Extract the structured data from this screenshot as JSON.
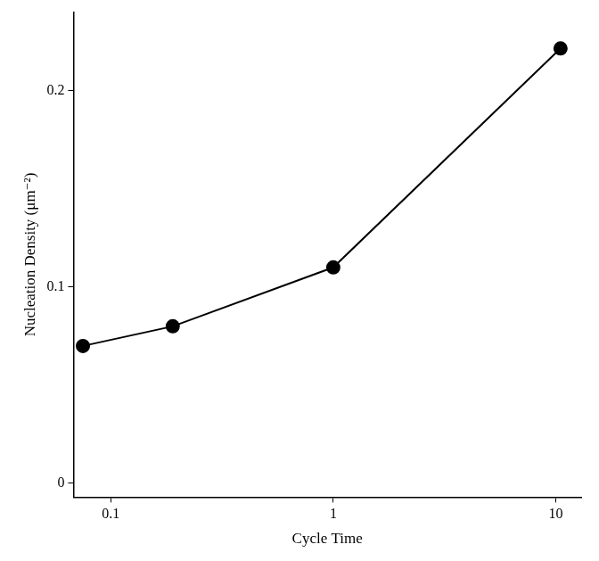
{
  "chart_data": {
    "type": "line",
    "x_label": "Cycle Time",
    "y_label": "Nucleation Density (μm⁻²)",
    "x": [
      0.075,
      0.19,
      1.0,
      10.5
    ],
    "values": [
      0.07,
      0.08,
      0.11,
      0.2215
    ],
    "color": "#000000",
    "marker": "circle",
    "log": "x",
    "grid": false,
    "xlim": [
      0.068,
      13
    ],
    "xticks": [
      0.1,
      1,
      10
    ],
    "ylim": [
      -0.007,
      0.24
    ],
    "yticks": [
      0,
      0.1,
      0.2
    ]
  }
}
